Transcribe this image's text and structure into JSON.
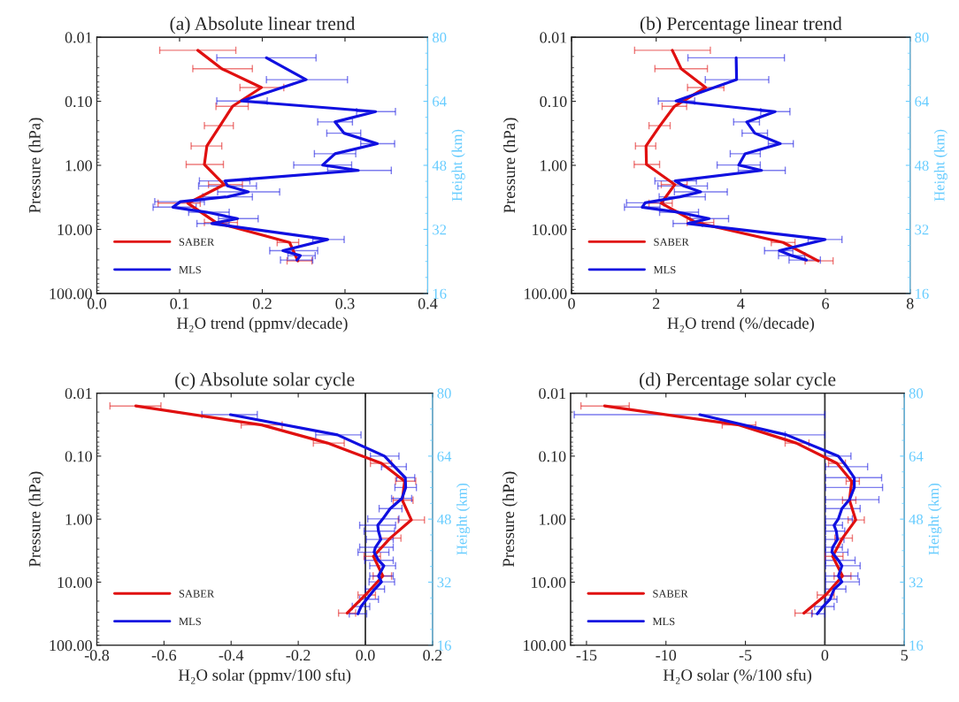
{
  "chart_data": [
    {
      "type": "line",
      "title": "(a) Absolute linear trend",
      "xlabel": "H₂O trend (ppmv/decade)",
      "ylabel": "Pressure (hPa)",
      "y2label": "Height (km)",
      "log": "y",
      "legend": "bottom left",
      "xlim": [
        0,
        0.4
      ],
      "xticks": [
        {
          "value": 0,
          "label": "0.0"
        },
        {
          "value": 0.1,
          "label": "0.1"
        },
        {
          "value": 0.2,
          "label": "0.2"
        },
        {
          "value": 0.3,
          "label": "0.3"
        },
        {
          "value": 0.4,
          "label": "0.4"
        }
      ],
      "ylim": [
        100,
        0.01
      ],
      "yticks": [
        {
          "value": 0.01,
          "label": "0.01"
        },
        {
          "value": 0.1,
          "label": "0.10"
        },
        {
          "value": 1,
          "label": "1.00"
        },
        {
          "value": 10,
          "label": "10.00"
        },
        {
          "value": 100,
          "label": "100.00"
        }
      ],
      "y2lim": [
        16,
        80
      ],
      "y2ticks": [
        16,
        32,
        48,
        64,
        80
      ],
      "series": [
        {
          "name": "SABER",
          "color": "#e01010",
          "x": [
            0.122,
            0.151,
            0.199,
            0.164,
            0.149,
            0.133,
            0.13,
            0.154,
            0.11,
            0.144,
            0.233,
            0.243
          ],
          "values": [
            0.016,
            0.031,
            0.061,
            0.12,
            0.24,
            0.5,
            0.97,
            2.0,
            3.9,
            7.8,
            16,
            31
          ],
          "xerrors": [
            [
              0.076,
              0.168
            ],
            [
              0.116,
              0.188
            ],
            [
              0.173,
              0.226
            ],
            [
              0.144,
              0.183
            ],
            [
              0.13,
              0.165
            ],
            [
              0.114,
              0.151
            ],
            [
              0.108,
              0.153
            ],
            [
              0.135,
              0.176
            ],
            [
              0.074,
              0.125
            ],
            [
              0.13,
              0.17
            ],
            [
              0.218,
              0.244
            ],
            [
              0.23,
              0.26
            ]
          ]
        },
        {
          "name": "MLS",
          "color": "#1010e0",
          "x": [
            0.205,
            0.253,
            0.175,
            0.337,
            0.288,
            0.299,
            0.339,
            0.288,
            0.273,
            0.316,
            0.155,
            0.158,
            0.183,
            0.158,
            0.101,
            0.092,
            0.133,
            0.17,
            0.139,
            0.279,
            0.225,
            0.246,
            0.242
          ],
          "values": [
            0.021,
            0.046,
            0.099,
            0.145,
            0.21,
            0.315,
            0.46,
            0.66,
            0.99,
            1.2,
            1.75,
            2.1,
            2.6,
            3.1,
            3.7,
            4.5,
            5.4,
            6.8,
            8.1,
            14.4,
            21.5,
            25.7,
            30.1
          ],
          "xerrors": [
            [
              0.145,
              0.265
            ],
            [
              0.205,
              0.303
            ],
            [
              0.145,
              0.206
            ],
            [
              0.314,
              0.361
            ],
            [
              0.267,
              0.309
            ],
            [
              0.278,
              0.319
            ],
            [
              0.319,
              0.36
            ],
            [
              0.263,
              0.313
            ],
            [
              0.238,
              0.308
            ],
            [
              0.279,
              0.356
            ],
            [
              0.124,
              0.185
            ],
            [
              0.123,
              0.193
            ],
            [
              0.146,
              0.221
            ],
            [
              0.128,
              0.188
            ],
            [
              0.07,
              0.13
            ],
            [
              0.068,
              0.12
            ],
            [
              0.111,
              0.16
            ],
            [
              0.147,
              0.195
            ],
            [
              0.121,
              0.16
            ],
            [
              0.261,
              0.299
            ],
            [
              0.209,
              0.267
            ],
            [
              0.231,
              0.264
            ],
            [
              0.222,
              0.261
            ]
          ]
        }
      ]
    },
    {
      "type": "line",
      "title": "(b) Percentage linear trend",
      "xlabel": "H₂O trend (%/decade)",
      "ylabel": "Pressure (hPa)",
      "y2label": "Height (km)",
      "log": "y",
      "legend": "bottom left",
      "xlim": [
        0,
        8
      ],
      "xticks": [
        0,
        2,
        4,
        6,
        8
      ],
      "ylim": [
        100,
        0.01
      ],
      "yticks": [
        {
          "value": 0.01,
          "label": "0.01"
        },
        {
          "value": 0.1,
          "label": "0.10"
        },
        {
          "value": 1,
          "label": "1.00"
        },
        {
          "value": 10,
          "label": "10.00"
        },
        {
          "value": 100,
          "label": "100.00"
        }
      ],
      "y2lim": [
        16,
        80
      ],
      "y2ticks": [
        16,
        32,
        48,
        64,
        80
      ],
      "series": [
        {
          "name": "SABER",
          "color": "#e01010",
          "x": [
            2.38,
            2.59,
            3.17,
            2.43,
            2.09,
            1.76,
            1.77,
            2.44,
            2.12,
            2.94,
            5.0,
            5.83
          ],
          "values": [
            0.016,
            0.031,
            0.061,
            0.12,
            0.24,
            0.5,
            0.97,
            2.0,
            3.9,
            7.8,
            16,
            31
          ],
          "xerrors": [
            [
              1.49,
              3.28
            ],
            [
              1.97,
              3.21
            ],
            [
              2.74,
              3.6
            ],
            [
              2.14,
              2.72
            ],
            [
              1.83,
              2.33
            ],
            [
              1.51,
              1.99
            ],
            [
              1.48,
              2.08
            ],
            [
              2.12,
              2.73
            ],
            [
              1.83,
              2.38
            ],
            [
              2.73,
              3.36
            ],
            [
              4.72,
              5.28
            ],
            [
              5.52,
              6.18
            ]
          ]
        },
        {
          "name": "MLS",
          "color": "#1010e0",
          "x": [
            3.89,
            3.9,
            2.47,
            4.81,
            4.14,
            4.33,
            4.93,
            4.1,
            3.95,
            4.49,
            2.45,
            2.65,
            3.05,
            2.56,
            1.74,
            1.67,
            2.52,
            3.25,
            2.75,
            5.99,
            4.91,
            5.21,
            5.55
          ],
          "values": [
            0.021,
            0.046,
            0.099,
            0.145,
            0.21,
            0.315,
            0.46,
            0.66,
            0.99,
            1.2,
            1.75,
            2.1,
            2.6,
            3.1,
            3.85,
            4.5,
            5.4,
            6.8,
            8.1,
            14.4,
            21.5,
            25.7,
            30.1
          ],
          "xerrors": [
            [
              2.75,
              5.03
            ],
            [
              3.16,
              4.66
            ],
            [
              2.05,
              2.91
            ],
            [
              4.47,
              5.16
            ],
            [
              3.83,
              4.44
            ],
            [
              4.03,
              4.63
            ],
            [
              4.65,
              5.24
            ],
            [
              3.75,
              4.46
            ],
            [
              3.44,
              4.46
            ],
            [
              3.94,
              5.05
            ],
            [
              1.97,
              2.95
            ],
            [
              2.04,
              3.21
            ],
            [
              2.43,
              3.68
            ],
            [
              2.07,
              3.16
            ],
            [
              1.3,
              2.18
            ],
            [
              1.25,
              2.09
            ],
            [
              2.08,
              3.0
            ],
            [
              2.8,
              3.71
            ],
            [
              2.4,
              3.09
            ],
            [
              5.59,
              6.39
            ],
            [
              4.56,
              5.23
            ],
            [
              4.89,
              5.51
            ],
            [
              5.14,
              5.88
            ]
          ]
        }
      ]
    },
    {
      "type": "line",
      "title": "(c) Absolute solar cycle",
      "xlabel": "H₂O solar (ppmv/100 sfu)",
      "ylabel": "Pressure (hPa)",
      "y2label": "Height (km)",
      "log": "y",
      "legend": "bottom left",
      "xlim": [
        -0.8,
        0.2
      ],
      "xticks": [
        {
          "value": -0.8,
          "label": "-0.8"
        },
        {
          "value": -0.6,
          "label": "-0.6"
        },
        {
          "value": -0.4,
          "label": "-0.4"
        },
        {
          "value": -0.2,
          "label": "-0.2"
        },
        {
          "value": 0,
          "label": "0.0"
        },
        {
          "value": 0.2,
          "label": "0.2"
        }
      ],
      "ylim": [
        100,
        0.01
      ],
      "yticks": [
        {
          "value": 0.01,
          "label": "0.01"
        },
        {
          "value": 0.1,
          "label": "0.10"
        },
        {
          "value": 1,
          "label": "1.00"
        },
        {
          "value": 10,
          "label": "10.00"
        },
        {
          "value": 100,
          "label": "100.00"
        }
      ],
      "y2lim": [
        16,
        80
      ],
      "y2ticks": [
        16,
        32,
        48,
        64,
        80
      ],
      "ref_lines": [
        {
          "axis": "x",
          "value": 0,
          "color": "#333333"
        }
      ],
      "series": [
        {
          "name": "SABER",
          "color": "#e01010",
          "x": [
            -0.684,
            -0.309,
            -0.113,
            0.048,
            0.117,
            0.11,
            0.137,
            0.074,
            0.024,
            0.052,
            0.0,
            -0.054
          ],
          "values": [
            0.016,
            0.032,
            0.062,
            0.13,
            0.25,
            0.5,
            1.03,
            2.0,
            3.9,
            8.0,
            16,
            31
          ],
          "xerrors": [
            [
              -0.761,
              -0.609
            ],
            [
              -0.37,
              -0.248
            ],
            [
              -0.155,
              -0.063
            ],
            [
              0.015,
              0.078
            ],
            [
              0.09,
              0.15
            ],
            [
              0.083,
              0.142
            ],
            [
              0.098,
              0.176
            ],
            [
              0.043,
              0.106
            ],
            [
              -0.004,
              0.045
            ],
            [
              0.023,
              0.078
            ],
            [
              -0.022,
              0.03
            ],
            [
              -0.08,
              -0.029
            ]
          ]
        },
        {
          "name": "MLS",
          "color": "#1010e0",
          "x": [
            -0.402,
            -0.083,
            0.057,
            0.087,
            0.119,
            0.12,
            0.109,
            0.074,
            0.052,
            0.037,
            0.039,
            0.046,
            0.03,
            0.026,
            0.039,
            0.055,
            0.039,
            0.048,
            0.028,
            0.004,
            -0.013,
            -0.022
          ],
          "values": [
            0.022,
            0.046,
            0.1,
            0.147,
            0.22,
            0.315,
            0.47,
            0.68,
            0.99,
            1.25,
            1.55,
            2.1,
            2.8,
            3.35,
            4.5,
            5.5,
            8.0,
            9.9,
            12.9,
            18.7,
            24.4,
            31.8
          ],
          "xerrors": [
            [
              -0.487,
              -0.322
            ],
            [
              -0.148,
              -0.013
            ],
            [
              0.015,
              0.1
            ],
            [
              0.048,
              0.122
            ],
            [
              0.093,
              0.147
            ],
            [
              0.088,
              0.152
            ],
            [
              0.078,
              0.138
            ],
            [
              0.041,
              0.109
            ],
            [
              0.007,
              0.1
            ],
            [
              -0.017,
              0.09
            ],
            [
              -0.004,
              0.087
            ],
            [
              0.003,
              0.083
            ],
            [
              -0.017,
              0.083
            ],
            [
              -0.022,
              0.07
            ],
            [
              -0.002,
              0.083
            ],
            [
              0.013,
              0.09
            ],
            [
              0.013,
              0.083
            ],
            [
              0.011,
              0.087
            ],
            [
              0.0,
              0.057
            ],
            [
              -0.017,
              0.039
            ],
            [
              -0.039,
              0.013
            ],
            [
              -0.048,
              0.004
            ]
          ]
        }
      ]
    },
    {
      "type": "line",
      "title": "(d) Percentage solar cycle",
      "xlabel": "H₂O solar (%/100 sfu)",
      "ylabel": "Pressure (hPa)",
      "y2label": "Height (km)",
      "log": "y",
      "legend": "bottom left",
      "xlim": [
        -16,
        5
      ],
      "xticks": [
        -15,
        -10,
        -5,
        0,
        5
      ],
      "ylim": [
        100,
        0.01
      ],
      "yticks": [
        {
          "value": 0.01,
          "label": "0.01"
        },
        {
          "value": 0.1,
          "label": "0.10"
        },
        {
          "value": 1,
          "label": "1.00"
        },
        {
          "value": 10,
          "label": "10.00"
        },
        {
          "value": 100,
          "label": "100.00"
        }
      ],
      "y2lim": [
        16,
        80
      ],
      "y2ticks": [
        16,
        32,
        48,
        64,
        80
      ],
      "ref_lines": [
        {
          "axis": "x",
          "value": 0,
          "color": "#333333"
        }
      ],
      "series": [
        {
          "name": "SABER",
          "color": "#e01010",
          "x": [
            -13.86,
            -5.4,
            -1.8,
            0.76,
            1.69,
            1.55,
            1.94,
            1.11,
            0.49,
            1.11,
            0.05,
            -1.32
          ],
          "values": [
            0.016,
            0.032,
            0.062,
            0.13,
            0.25,
            0.5,
            1.03,
            2.0,
            3.9,
            8.0,
            16,
            31
          ],
          "xerrors": [
            [
              -15.35,
              -12.31
            ],
            [
              -6.46,
              -4.35
            ],
            [
              -2.5,
              -1.0
            ],
            [
              0.23,
              1.29
            ],
            [
              1.34,
              2.17
            ],
            [
              1.11,
              1.95
            ],
            [
              1.46,
              2.48
            ],
            [
              0.63,
              1.73
            ],
            [
              0.02,
              1.14
            ],
            [
              0.58,
              1.64
            ],
            [
              -0.48,
              0.58
            ],
            [
              -1.88,
              -0.79
            ]
          ]
        },
        {
          "name": "MLS",
          "color": "#1010e0",
          "x": [
            -7.87,
            -2.41,
            0.85,
            1.37,
            1.85,
            1.85,
            1.55,
            1.07,
            0.85,
            0.58,
            0.72,
            0.79,
            0.49,
            0.44,
            0.85,
            1.07,
            0.85,
            1.07,
            0.58,
            0.32,
            -0.12,
            -0.48
          ],
          "values": [
            0.022,
            0.046,
            0.1,
            0.147,
            0.22,
            0.315,
            0.49,
            0.68,
            0.99,
            1.25,
            1.55,
            2.1,
            2.8,
            3.35,
            4.5,
            5.5,
            8.0,
            9.9,
            12.9,
            18.7,
            24.4,
            31.8
          ],
          "xerrors": [
            [
              -15.77,
              0.0
            ],
            [
              -2.5,
              0.0
            ],
            [
              0.05,
              1.64
            ],
            [
              0.05,
              2.69
            ],
            [
              0.05,
              3.57
            ],
            [
              0.05,
              3.63
            ],
            [
              0.05,
              3.4
            ],
            [
              0.05,
              2.22
            ],
            [
              0.05,
              1.73
            ],
            [
              0.05,
              1.11
            ],
            [
              0.05,
              1.25
            ],
            [
              0.05,
              1.2
            ],
            [
              0.05,
              1.1
            ],
            [
              0.05,
              1.45
            ],
            [
              0.05,
              1.9
            ],
            [
              0.05,
              2.22
            ],
            [
              0.05,
              2.08
            ],
            [
              0.05,
              2.17
            ],
            [
              0.05,
              1.32
            ],
            [
              0.05,
              0.76
            ],
            [
              -0.65,
              0.58
            ],
            [
              -0.83,
              0.0
            ]
          ]
        }
      ]
    }
  ]
}
